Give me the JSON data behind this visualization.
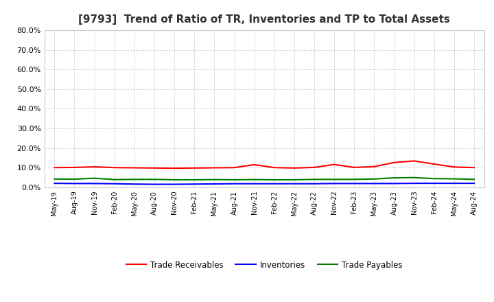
{
  "title": "[9793]  Trend of Ratio of TR, Inventories and TP to Total Assets",
  "title_fontsize": 11,
  "background_color": "#ffffff",
  "plot_background_color": "#ffffff",
  "grid_color": "#aaaaaa",
  "ylim": [
    0.0,
    0.8
  ],
  "yticks": [
    0.0,
    0.1,
    0.2,
    0.3,
    0.4,
    0.5,
    0.6,
    0.7,
    0.8
  ],
  "x_labels": [
    "May-19",
    "Aug-19",
    "Nov-19",
    "Feb-20",
    "May-20",
    "Aug-20",
    "Nov-20",
    "Feb-21",
    "May-21",
    "Aug-21",
    "Nov-21",
    "Feb-22",
    "May-22",
    "Aug-22",
    "Nov-22",
    "Feb-23",
    "May-23",
    "Aug-23",
    "Nov-23",
    "Feb-24",
    "May-24",
    "Aug-24"
  ],
  "trade_receivables": [
    0.1,
    0.101,
    0.104,
    0.1,
    0.099,
    0.098,
    0.097,
    0.098,
    0.099,
    0.1,
    0.115,
    0.1,
    0.098,
    0.101,
    0.116,
    0.101,
    0.105,
    0.126,
    0.134,
    0.118,
    0.103,
    0.1
  ],
  "inventories": [
    0.02,
    0.019,
    0.019,
    0.018,
    0.016,
    0.015,
    0.015,
    0.016,
    0.017,
    0.018,
    0.018,
    0.018,
    0.018,
    0.018,
    0.019,
    0.019,
    0.019,
    0.019,
    0.02,
    0.02,
    0.02,
    0.02
  ],
  "trade_payables": [
    0.042,
    0.041,
    0.046,
    0.039,
    0.04,
    0.04,
    0.038,
    0.038,
    0.039,
    0.038,
    0.039,
    0.038,
    0.038,
    0.04,
    0.04,
    0.04,
    0.042,
    0.048,
    0.049,
    0.044,
    0.043,
    0.04
  ],
  "tr_color": "#ff0000",
  "inv_color": "#0000ff",
  "tp_color": "#008000",
  "line_width": 1.5,
  "legend_labels": [
    "Trade Receivables",
    "Inventories",
    "Trade Payables"
  ]
}
